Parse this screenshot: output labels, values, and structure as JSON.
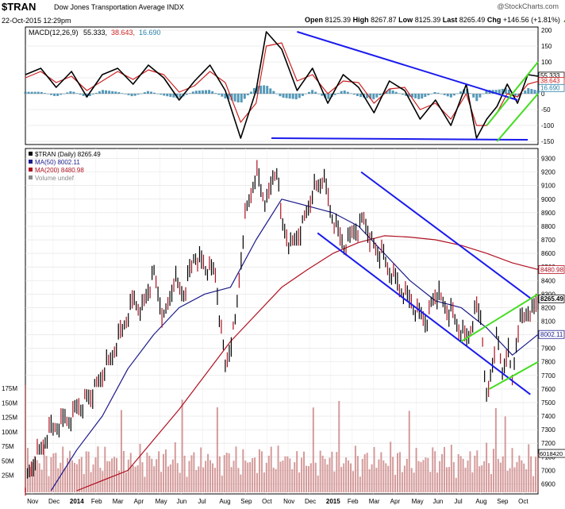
{
  "header": {
    "symbol": "$TRAN",
    "name": "Dow Jones Transportation Average INDX",
    "watermark": "@StockCharts.com",
    "date": "22-Oct-2015 12:29pm",
    "open_label": "Open",
    "open": "8125.39",
    "high_label": "High",
    "high": "8267.87",
    "low_label": "Low",
    "low": "8125.39",
    "last_label": "Last",
    "last": "8265.49",
    "chg_label": "Chg",
    "chg": "+146.56 (+1.81%)",
    "chg_symbol": "▲"
  },
  "colors": {
    "price": "#000000",
    "ma50": "#1a1a8c",
    "ma200": "#b01020",
    "macd": "#000000",
    "signal": "#cc2222",
    "hist": "#2a7fa8",
    "trend": "#1a1aee",
    "green": "#44dd22",
    "volume": "#c77a7a"
  },
  "chart_data": [
    {
      "type": "line",
      "title": "MACD(12,26,9) 55.333, 38.643, 16.690",
      "legend": {
        "label": "MACD(12,26,9)",
        "macd": "55.333",
        "signal": "38.643",
        "hist": "16.690"
      },
      "ylim": [
        -150,
        200
      ],
      "yticks": [
        "200",
        "150",
        "100",
        "50",
        "0",
        "-50",
        "-100",
        "-150"
      ],
      "tags": [
        "55.333",
        "38.643",
        "16.690"
      ],
      "series": [
        {
          "name": "MACD",
          "x": [
            0,
            0.03,
            0.06,
            0.09,
            0.12,
            0.15,
            0.18,
            0.21,
            0.24,
            0.27,
            0.3,
            0.33,
            0.36,
            0.39,
            0.42,
            0.45,
            0.47,
            0.5,
            0.53,
            0.56,
            0.59,
            0.62,
            0.65,
            0.68,
            0.71,
            0.74,
            0.77,
            0.8,
            0.83,
            0.86,
            0.88,
            0.9,
            0.92,
            0.94,
            0.96,
            0.98,
            1.0
          ],
          "values": [
            60,
            80,
            20,
            70,
            -10,
            60,
            80,
            30,
            90,
            50,
            -20,
            40,
            90,
            10,
            -140,
            10,
            195,
            140,
            10,
            80,
            -30,
            60,
            20,
            -60,
            40,
            10,
            -80,
            -20,
            -100,
            30,
            -140,
            -80,
            -40,
            30,
            -30,
            60,
            55
          ]
        },
        {
          "name": "Signal",
          "x": [
            0,
            0.03,
            0.06,
            0.09,
            0.12,
            0.15,
            0.18,
            0.21,
            0.24,
            0.27,
            0.3,
            0.33,
            0.36,
            0.39,
            0.42,
            0.45,
            0.47,
            0.5,
            0.53,
            0.56,
            0.59,
            0.62,
            0.65,
            0.68,
            0.71,
            0.74,
            0.77,
            0.8,
            0.83,
            0.86,
            0.88,
            0.9,
            0.92,
            0.94,
            0.96,
            0.98,
            1.0
          ],
          "values": [
            50,
            70,
            35,
            55,
            10,
            40,
            70,
            45,
            75,
            60,
            5,
            25,
            70,
            35,
            -90,
            -30,
            150,
            160,
            40,
            60,
            0,
            40,
            35,
            -30,
            15,
            20,
            -50,
            -30,
            -80,
            0,
            -100,
            -100,
            -60,
            0,
            -10,
            30,
            39
          ]
        }
      ]
    },
    {
      "type": "line",
      "title": "$TRAN (Daily) 8265.49",
      "legend": [
        {
          "label": "$TRAN (Daily) 8265.49"
        },
        {
          "label": "MA(50) 8002.11"
        },
        {
          "label": "MA(200) 8480.98"
        },
        {
          "label": "Volume undef"
        }
      ],
      "xlabels": [
        "Nov",
        "Dec",
        "2014",
        "Feb",
        "Mar",
        "Apr",
        "May",
        "Jun",
        "Jul",
        "Aug",
        "Sep",
        "Oct",
        "Nov",
        "Dec",
        "2015",
        "Feb",
        "Mar",
        "Apr",
        "May",
        "Jun",
        "Jul",
        "Aug",
        "Sep",
        "Oct"
      ],
      "ylim": [
        6850,
        9350
      ],
      "yticks": [
        "9300",
        "9200",
        "9100",
        "9000",
        "8900",
        "8800",
        "8700",
        "8600",
        "8500",
        "8400",
        "8300",
        "8200",
        "8100",
        "8000",
        "7900",
        "7800",
        "7700",
        "7600",
        "7500",
        "7400",
        "7300",
        "7200",
        "7100",
        "7000",
        "6900"
      ],
      "tags": [
        {
          "label": "8265.49",
          "value": 8265.49,
          "bold": true
        },
        {
          "label": "8480.98",
          "value": 8480.98
        },
        {
          "label": "8002.11",
          "value": 8002.11
        }
      ],
      "volume_ticks": [
        "175M",
        "150M",
        "125M",
        "100M",
        "75M",
        "50M",
        "25M"
      ],
      "volume_tag": "6018420",
      "series": [
        {
          "name": "$TRAN",
          "x": [
            0,
            0.01,
            0.03,
            0.05,
            0.07,
            0.09,
            0.11,
            0.13,
            0.15,
            0.17,
            0.19,
            0.21,
            0.23,
            0.25,
            0.27,
            0.29,
            0.31,
            0.33,
            0.35,
            0.37,
            0.39,
            0.41,
            0.42,
            0.43,
            0.45,
            0.47,
            0.49,
            0.5,
            0.52,
            0.54,
            0.56,
            0.58,
            0.6,
            0.62,
            0.64,
            0.66,
            0.68,
            0.7,
            0.72,
            0.74,
            0.76,
            0.78,
            0.8,
            0.82,
            0.84,
            0.86,
            0.88,
            0.89,
            0.9,
            0.91,
            0.92,
            0.93,
            0.94,
            0.95,
            0.96,
            0.97,
            0.98,
            0.99,
            1.0
          ],
          "values": [
            6900,
            7000,
            7150,
            7300,
            7350,
            7400,
            7500,
            7550,
            7700,
            7850,
            8050,
            8250,
            8200,
            8450,
            8100,
            8400,
            8300,
            8600,
            8500,
            8450,
            7750,
            8100,
            8550,
            8900,
            9200,
            8950,
            9250,
            8800,
            8650,
            8800,
            9050,
            9150,
            8850,
            8650,
            8750,
            8850,
            8650,
            8550,
            8400,
            8300,
            8200,
            8100,
            8300,
            8200,
            8100,
            7950,
            8200,
            8100,
            7500,
            7750,
            8000,
            7700,
            7900,
            7650,
            8050,
            8100,
            8200,
            8150,
            8265
          ]
        },
        {
          "name": "MA(50)",
          "x": [
            0.05,
            0.1,
            0.15,
            0.2,
            0.25,
            0.3,
            0.35,
            0.4,
            0.45,
            0.5,
            0.55,
            0.6,
            0.65,
            0.7,
            0.75,
            0.8,
            0.85,
            0.9,
            0.95,
            1.0
          ],
          "values": [
            6850,
            7150,
            7400,
            7750,
            8000,
            8200,
            8300,
            8350,
            8700,
            9000,
            8950,
            8900,
            8800,
            8600,
            8400,
            8250,
            8200,
            8050,
            7850,
            8002
          ]
        },
        {
          "name": "MA(200)",
          "x": [
            0.1,
            0.2,
            0.3,
            0.4,
            0.5,
            0.55,
            0.6,
            0.65,
            0.7,
            0.75,
            0.8,
            0.85,
            0.9,
            0.95,
            1.0
          ],
          "values": [
            6850,
            7000,
            7450,
            7950,
            8350,
            8480,
            8600,
            8680,
            8730,
            8720,
            8700,
            8660,
            8600,
            8530,
            8481
          ]
        }
      ]
    }
  ]
}
